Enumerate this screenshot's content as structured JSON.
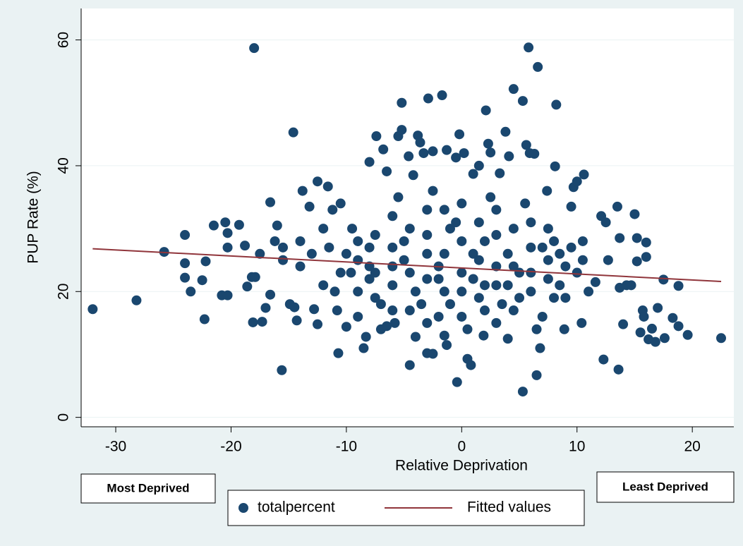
{
  "chart_data": {
    "type": "scatter",
    "xlabel": "Relative Deprivation",
    "ylabel": "PUP Rate (%)",
    "xlim": [
      -33,
      23.6
    ],
    "ylim": [
      -1.5,
      65
    ],
    "xticks": [
      -30,
      -20,
      -10,
      0,
      10,
      20
    ],
    "yticks": [
      0,
      20,
      40,
      60
    ],
    "grid": true,
    "annotations": [
      "Most Deprived",
      "Least Deprived"
    ],
    "series": [
      {
        "name": "totalpercent",
        "type": "scatter",
        "color": "#1a476f",
        "x": [
          -32,
          -28.2,
          -25.8,
          -24,
          -24,
          -24,
          -23.5,
          -22.5,
          -22.3,
          -22.2,
          -21.5,
          -20.8,
          -20.3,
          -20.5,
          -20.3,
          -20.3,
          -19.3,
          -18.8,
          -18.6,
          -18.2,
          -18,
          -17.9,
          -18.1,
          -17.3,
          -17,
          -16.6,
          -16.6,
          -16,
          -15.6,
          -15.5,
          -14.9,
          -14.6,
          -14.5,
          -14.3,
          -13.8,
          -14,
          -13.2,
          -12.8,
          -12.5,
          -12.5,
          -11.6,
          -12,
          -11,
          -10.7,
          -10.5,
          -10,
          -9.6,
          -8.5,
          -8.3,
          -8,
          -7.4,
          -6.8,
          -6.5,
          -5.8,
          -5.5,
          -5.2,
          -5.2,
          -4.6,
          -4.5,
          -4.2,
          -3.8,
          -3.6,
          -3.3,
          -3,
          -2.9,
          -2.5,
          -2.5,
          -1.7,
          -1.3,
          -1.3,
          -0.5,
          -0.2,
          -0.4,
          0.2,
          0.5,
          0.8,
          1,
          1.5,
          1.9,
          2.1,
          2.3,
          2.5,
          3.8,
          3.3,
          4.1,
          4.5,
          5.3,
          5.3,
          5.6,
          5.8,
          5.9,
          6.3,
          6.6,
          6.8,
          6.5,
          7.4,
          8.2,
          8.1,
          8.9,
          9.5,
          9.7,
          10,
          10.6,
          10.4,
          12.3,
          12.1,
          12.5,
          13.5,
          13.6,
          13.7,
          14,
          14.3,
          15,
          15.2,
          15.7,
          16,
          16,
          16.2,
          16.8,
          17,
          17.5,
          17.6,
          18.3,
          18.8,
          18.8,
          19.6,
          22.5,
          14.7,
          15.2,
          15.5,
          16.5,
          15.8,
          13.7,
          12.7,
          11.6,
          10.5,
          -10.8,
          -9.5,
          -11.2,
          -13,
          -15.5,
          -16.2,
          -17.5,
          -12,
          -9,
          -7,
          -6,
          -3,
          0,
          3,
          6,
          8,
          9,
          11,
          -14,
          -10,
          -8,
          -7,
          -5,
          -4,
          -2,
          -1,
          1,
          2,
          4,
          5,
          6,
          7,
          8,
          10,
          -6,
          -3,
          0,
          2,
          4,
          -2,
          3,
          -8,
          7,
          9,
          -9,
          -9,
          -9,
          -7.5,
          -7.5,
          -7.5,
          -6,
          -6,
          -6,
          -4.5,
          -4.5,
          -4.5,
          -3,
          -3,
          -3,
          -1.5,
          -1.5,
          -1.5,
          -1.5,
          0,
          0,
          0,
          1.5,
          1.5,
          1.5,
          3,
          3,
          3,
          4.5,
          4.5,
          4.5,
          6,
          6,
          7.5,
          7.5,
          7.5,
          8.5,
          8.5,
          -5,
          -2,
          1,
          -1,
          2,
          5,
          -8,
          -10.5,
          9.5,
          -3.5,
          3.5,
          -0.5,
          0.5,
          -5.5,
          5.5,
          -2.5,
          2.5,
          -11.5,
          10.5,
          -6.5,
          6.5,
          -4,
          4
        ],
        "values": [
          17.2,
          18.6,
          26.3,
          29,
          24.5,
          22.2,
          20,
          21.8,
          15.6,
          24.8,
          30.5,
          19.4,
          19.4,
          31,
          29.3,
          27,
          30.6,
          27.3,
          20.8,
          22.3,
          58.7,
          22.3,
          15.1,
          15.2,
          17.4,
          19.5,
          34.2,
          30.5,
          7.5,
          25,
          18,
          45.3,
          17.5,
          15.4,
          36,
          28,
          33.5,
          17.2,
          37.5,
          14.8,
          36.7,
          30,
          20,
          10.2,
          34,
          14.4,
          23,
          11,
          12.8,
          40.6,
          44.7,
          42.6,
          39.1,
          15,
          44.7,
          45.7,
          50,
          41.5,
          8.3,
          38.5,
          44.8,
          43.7,
          42,
          10.2,
          50.7,
          42.3,
          10.1,
          51.2,
          11.5,
          42.5,
          41.3,
          45,
          5.6,
          42,
          9.3,
          8.3,
          38.7,
          40,
          13,
          48.8,
          43.5,
          42.1,
          45.4,
          38.8,
          41.5,
          52.2,
          4.1,
          50.3,
          43.3,
          58.8,
          42,
          41.9,
          55.7,
          11,
          6.7,
          36,
          49.7,
          39.9,
          14,
          33.5,
          36.6,
          37.5,
          38.6,
          15,
          9.2,
          32,
          31,
          33.5,
          7.6,
          28.5,
          14.8,
          21,
          32.3,
          28.5,
          17,
          27.8,
          25.5,
          12.4,
          12,
          17.4,
          21.9,
          12.6,
          15.8,
          14.5,
          20.9,
          13.1,
          12.6,
          21,
          24.8,
          13.5,
          14.1,
          16,
          20.6,
          25,
          21.5,
          28,
          17,
          30,
          33,
          26,
          27,
          28,
          26,
          21,
          16,
          14,
          32,
          33,
          34,
          33,
          31,
          28,
          24,
          20,
          24,
          26,
          22,
          18,
          28,
          20,
          16,
          30,
          22,
          17,
          26,
          19,
          23,
          16,
          19,
          23,
          24,
          26,
          20,
          28,
          21,
          24,
          24,
          27,
          27,
          19,
          25,
          20,
          28,
          23,
          29,
          19,
          21,
          27,
          17,
          23,
          30,
          17,
          22,
          29,
          15,
          20,
          26,
          33,
          13,
          23,
          28,
          16,
          25,
          31,
          19,
          21,
          29,
          15,
          24,
          30,
          17,
          20,
          27,
          22,
          25,
          30,
          21,
          26,
          25,
          22,
          26,
          18,
          21,
          23,
          24,
          23,
          27,
          18,
          18,
          31,
          14,
          35,
          34,
          36,
          35,
          27,
          25,
          14.5,
          14,
          12.8,
          12.5
        ]
      },
      {
        "name": "Fitted values",
        "type": "line",
        "color": "#90353b",
        "x": [
          -32,
          22.5
        ],
        "values": [
          26.8,
          21.6
        ]
      }
    ]
  }
}
